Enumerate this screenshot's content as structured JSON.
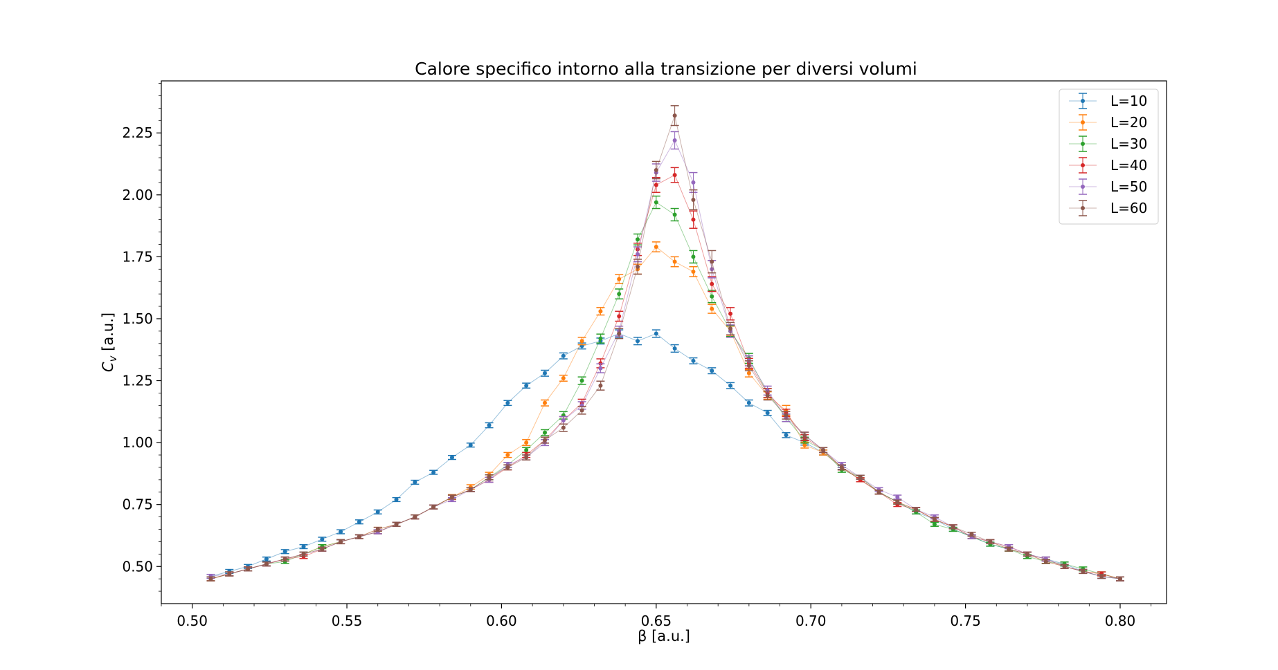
{
  "chart_data": {
    "type": "line",
    "title": "Calore specifico intorno alla transizione per diversi volumi",
    "xlabel": "β [a.u.]",
    "ylabel_main": "C",
    "ylabel_sub": "v",
    "ylabel_rest": " [a.u.]",
    "xlim": [
      0.49,
      0.815
    ],
    "ylim": [
      0.35,
      2.46
    ],
    "xticks": [
      0.5,
      0.55,
      0.6,
      0.65,
      0.7,
      0.75,
      0.8
    ],
    "xtick_labels": [
      "0.50",
      "0.55",
      "0.60",
      "0.65",
      "0.70",
      "0.75",
      "0.80"
    ],
    "yticks": [
      0.5,
      0.75,
      1.0,
      1.25,
      1.5,
      1.75,
      2.0,
      2.25
    ],
    "ytick_labels": [
      "0.50",
      "0.75",
      "1.00",
      "1.25",
      "1.50",
      "1.75",
      "2.00",
      "2.25"
    ],
    "legend_position": "top-right",
    "grid": false,
    "markers": "points with error bars",
    "series": [
      {
        "name": "L=10",
        "color": "#1f77b4",
        "x": [
          0.506,
          0.512,
          0.518,
          0.524,
          0.53,
          0.536,
          0.542,
          0.548,
          0.554,
          0.56,
          0.566,
          0.572,
          0.578,
          0.584,
          0.59,
          0.596,
          0.602,
          0.608,
          0.614,
          0.62,
          0.626,
          0.632,
          0.638,
          0.644,
          0.65,
          0.656,
          0.662,
          0.668,
          0.674,
          0.68,
          0.686,
          0.692,
          0.698,
          0.704,
          0.71,
          0.716,
          0.722,
          0.728,
          0.734,
          0.74,
          0.746,
          0.752,
          0.758,
          0.764,
          0.77,
          0.776,
          0.782,
          0.788,
          0.794,
          0.8
        ],
        "y": [
          0.46,
          0.48,
          0.5,
          0.53,
          0.56,
          0.58,
          0.61,
          0.64,
          0.68,
          0.72,
          0.77,
          0.84,
          0.88,
          0.94,
          0.99,
          1.07,
          1.16,
          1.23,
          1.28,
          1.35,
          1.39,
          1.41,
          1.44,
          1.41,
          1.44,
          1.38,
          1.33,
          1.29,
          1.23,
          1.16,
          1.12,
          1.03,
          1.0,
          0.96,
          0.9,
          0.85,
          0.8,
          0.76,
          0.72,
          0.69,
          0.65,
          0.62,
          0.59,
          0.57,
          0.55,
          0.53,
          0.51,
          0.48,
          0.46,
          0.45
        ],
        "err": [
          0.008,
          0.008,
          0.008,
          0.008,
          0.008,
          0.008,
          0.008,
          0.008,
          0.008,
          0.008,
          0.008,
          0.008,
          0.008,
          0.008,
          0.008,
          0.01,
          0.01,
          0.01,
          0.012,
          0.012,
          0.012,
          0.012,
          0.015,
          0.015,
          0.015,
          0.015,
          0.012,
          0.012,
          0.012,
          0.012,
          0.01,
          0.01,
          0.01,
          0.01,
          0.008,
          0.008,
          0.008,
          0.008,
          0.008,
          0.008,
          0.008,
          0.008,
          0.008,
          0.008,
          0.008,
          0.008,
          0.008,
          0.008,
          0.008,
          0.008
        ]
      },
      {
        "name": "L=20",
        "color": "#ff7f0e",
        "x": [
          0.506,
          0.512,
          0.518,
          0.524,
          0.53,
          0.536,
          0.542,
          0.548,
          0.554,
          0.56,
          0.566,
          0.572,
          0.578,
          0.584,
          0.59,
          0.596,
          0.602,
          0.608,
          0.614,
          0.62,
          0.626,
          0.632,
          0.638,
          0.644,
          0.65,
          0.656,
          0.662,
          0.668,
          0.674,
          0.68,
          0.686,
          0.692,
          0.698,
          0.704,
          0.71,
          0.716,
          0.722,
          0.728,
          0.734,
          0.74,
          0.746,
          0.752,
          0.758,
          0.764,
          0.77,
          0.776,
          0.782,
          0.788,
          0.794,
          0.8
        ],
        "y": [
          0.45,
          0.47,
          0.49,
          0.51,
          0.53,
          0.55,
          0.58,
          0.6,
          0.62,
          0.65,
          0.67,
          0.7,
          0.74,
          0.78,
          0.82,
          0.87,
          0.95,
          1.0,
          1.16,
          1.26,
          1.41,
          1.53,
          1.66,
          1.7,
          1.79,
          1.73,
          1.69,
          1.54,
          1.45,
          1.28,
          1.19,
          1.13,
          0.99,
          0.96,
          0.9,
          0.85,
          0.8,
          0.76,
          0.73,
          0.69,
          0.66,
          0.62,
          0.6,
          0.57,
          0.55,
          0.52,
          0.5,
          0.48,
          0.47,
          0.45
        ],
        "err": [
          0.008,
          0.008,
          0.008,
          0.008,
          0.008,
          0.008,
          0.008,
          0.008,
          0.008,
          0.008,
          0.008,
          0.008,
          0.008,
          0.01,
          0.01,
          0.01,
          0.01,
          0.012,
          0.012,
          0.012,
          0.015,
          0.015,
          0.018,
          0.02,
          0.02,
          0.02,
          0.02,
          0.018,
          0.02,
          0.015,
          0.015,
          0.02,
          0.012,
          0.01,
          0.01,
          0.008,
          0.008,
          0.008,
          0.008,
          0.008,
          0.008,
          0.008,
          0.008,
          0.008,
          0.008,
          0.008,
          0.008,
          0.008,
          0.008,
          0.008
        ]
      },
      {
        "name": "L=30",
        "color": "#2ca02c",
        "x": [
          0.506,
          0.512,
          0.518,
          0.524,
          0.53,
          0.536,
          0.542,
          0.548,
          0.554,
          0.56,
          0.566,
          0.572,
          0.578,
          0.584,
          0.59,
          0.596,
          0.602,
          0.608,
          0.614,
          0.62,
          0.626,
          0.632,
          0.638,
          0.644,
          0.65,
          0.656,
          0.662,
          0.668,
          0.674,
          0.68,
          0.686,
          0.692,
          0.698,
          0.704,
          0.71,
          0.716,
          0.722,
          0.728,
          0.734,
          0.74,
          0.746,
          0.752,
          0.758,
          0.764,
          0.77,
          0.776,
          0.782,
          0.788,
          0.794,
          0.8
        ],
        "y": [
          0.45,
          0.47,
          0.49,
          0.51,
          0.52,
          0.55,
          0.58,
          0.6,
          0.62,
          0.64,
          0.67,
          0.7,
          0.74,
          0.78,
          0.81,
          0.86,
          0.91,
          0.97,
          1.04,
          1.11,
          1.25,
          1.42,
          1.6,
          1.82,
          1.97,
          1.92,
          1.75,
          1.59,
          1.45,
          1.34,
          1.2,
          1.1,
          1.01,
          0.97,
          0.89,
          0.86,
          0.8,
          0.76,
          0.72,
          0.67,
          0.65,
          0.62,
          0.59,
          0.57,
          0.54,
          0.52,
          0.51,
          0.49,
          0.47,
          0.45
        ],
        "err": [
          0.008,
          0.008,
          0.008,
          0.008,
          0.008,
          0.008,
          0.008,
          0.008,
          0.008,
          0.008,
          0.008,
          0.008,
          0.008,
          0.008,
          0.008,
          0.01,
          0.01,
          0.01,
          0.012,
          0.015,
          0.015,
          0.018,
          0.02,
          0.022,
          0.025,
          0.025,
          0.025,
          0.025,
          0.022,
          0.02,
          0.018,
          0.015,
          0.012,
          0.01,
          0.01,
          0.008,
          0.008,
          0.008,
          0.008,
          0.008,
          0.008,
          0.008,
          0.008,
          0.008,
          0.008,
          0.008,
          0.008,
          0.008,
          0.008,
          0.008
        ]
      },
      {
        "name": "L=40",
        "color": "#d62728",
        "x": [
          0.506,
          0.512,
          0.518,
          0.524,
          0.53,
          0.536,
          0.542,
          0.548,
          0.554,
          0.56,
          0.566,
          0.572,
          0.578,
          0.584,
          0.59,
          0.596,
          0.602,
          0.608,
          0.614,
          0.62,
          0.626,
          0.632,
          0.638,
          0.644,
          0.65,
          0.656,
          0.662,
          0.668,
          0.674,
          0.68,
          0.686,
          0.692,
          0.698,
          0.704,
          0.71,
          0.716,
          0.722,
          0.728,
          0.734,
          0.74,
          0.746,
          0.752,
          0.758,
          0.764,
          0.77,
          0.776,
          0.782,
          0.788,
          0.794,
          0.8
        ],
        "y": [
          0.45,
          0.47,
          0.49,
          0.51,
          0.53,
          0.54,
          0.57,
          0.6,
          0.62,
          0.64,
          0.67,
          0.7,
          0.74,
          0.78,
          0.81,
          0.85,
          0.9,
          0.95,
          1.01,
          1.09,
          1.16,
          1.32,
          1.51,
          1.78,
          2.04,
          2.08,
          1.9,
          1.64,
          1.52,
          1.32,
          1.2,
          1.12,
          1.02,
          0.97,
          0.9,
          0.85,
          0.8,
          0.75,
          0.73,
          0.69,
          0.66,
          0.62,
          0.6,
          0.58,
          0.55,
          0.53,
          0.5,
          0.48,
          0.47,
          0.45
        ],
        "err": [
          0.008,
          0.008,
          0.008,
          0.008,
          0.008,
          0.008,
          0.008,
          0.008,
          0.008,
          0.008,
          0.008,
          0.008,
          0.008,
          0.008,
          0.008,
          0.01,
          0.01,
          0.01,
          0.012,
          0.015,
          0.015,
          0.018,
          0.02,
          0.025,
          0.03,
          0.03,
          0.035,
          0.03,
          0.025,
          0.02,
          0.018,
          0.015,
          0.012,
          0.01,
          0.01,
          0.008,
          0.008,
          0.008,
          0.008,
          0.008,
          0.008,
          0.008,
          0.008,
          0.008,
          0.008,
          0.008,
          0.008,
          0.008,
          0.008,
          0.008
        ]
      },
      {
        "name": "L=50",
        "color": "#9467bd",
        "x": [
          0.506,
          0.512,
          0.518,
          0.524,
          0.53,
          0.536,
          0.542,
          0.548,
          0.554,
          0.56,
          0.566,
          0.572,
          0.578,
          0.584,
          0.59,
          0.596,
          0.602,
          0.608,
          0.614,
          0.62,
          0.626,
          0.632,
          0.638,
          0.644,
          0.65,
          0.656,
          0.662,
          0.668,
          0.674,
          0.68,
          0.686,
          0.692,
          0.698,
          0.704,
          0.71,
          0.716,
          0.722,
          0.728,
          0.734,
          0.74,
          0.746,
          0.752,
          0.758,
          0.764,
          0.77,
          0.776,
          0.782,
          0.788,
          0.794,
          0.8
        ],
        "y": [
          0.46,
          0.47,
          0.49,
          0.51,
          0.53,
          0.55,
          0.57,
          0.6,
          0.62,
          0.64,
          0.67,
          0.7,
          0.74,
          0.77,
          0.81,
          0.85,
          0.91,
          0.94,
          1.0,
          1.09,
          1.15,
          1.3,
          1.45,
          1.76,
          2.09,
          2.22,
          2.05,
          1.7,
          1.45,
          1.33,
          1.21,
          1.1,
          1.03,
          0.97,
          0.91,
          0.86,
          0.81,
          0.78,
          0.73,
          0.7,
          0.66,
          0.62,
          0.6,
          0.58,
          0.55,
          0.53,
          0.5,
          0.48,
          0.46,
          0.45
        ],
        "err": [
          0.008,
          0.008,
          0.008,
          0.008,
          0.008,
          0.008,
          0.008,
          0.008,
          0.008,
          0.008,
          0.008,
          0.008,
          0.008,
          0.008,
          0.008,
          0.01,
          0.01,
          0.01,
          0.012,
          0.015,
          0.015,
          0.018,
          0.02,
          0.03,
          0.035,
          0.035,
          0.04,
          0.035,
          0.025,
          0.02,
          0.018,
          0.015,
          0.012,
          0.01,
          0.01,
          0.008,
          0.008,
          0.008,
          0.008,
          0.008,
          0.008,
          0.008,
          0.008,
          0.008,
          0.008,
          0.008,
          0.008,
          0.008,
          0.008,
          0.008
        ]
      },
      {
        "name": "L=60",
        "color": "#8c564b",
        "x": [
          0.506,
          0.512,
          0.518,
          0.524,
          0.53,
          0.536,
          0.542,
          0.548,
          0.554,
          0.56,
          0.566,
          0.572,
          0.578,
          0.584,
          0.59,
          0.596,
          0.602,
          0.608,
          0.614,
          0.62,
          0.626,
          0.632,
          0.638,
          0.644,
          0.65,
          0.656,
          0.662,
          0.668,
          0.674,
          0.68,
          0.686,
          0.692,
          0.698,
          0.704,
          0.71,
          0.716,
          0.722,
          0.728,
          0.734,
          0.74,
          0.746,
          0.752,
          0.758,
          0.764,
          0.77,
          0.776,
          0.782,
          0.788,
          0.794,
          0.8
        ],
        "y": [
          0.45,
          0.47,
          0.49,
          0.51,
          0.53,
          0.55,
          0.57,
          0.6,
          0.62,
          0.65,
          0.67,
          0.7,
          0.74,
          0.78,
          0.81,
          0.86,
          0.9,
          0.94,
          1.01,
          1.06,
          1.13,
          1.23,
          1.44,
          1.71,
          2.1,
          2.32,
          1.98,
          1.73,
          1.46,
          1.31,
          1.19,
          1.11,
          1.03,
          0.97,
          0.9,
          0.86,
          0.8,
          0.76,
          0.73,
          0.69,
          0.66,
          0.63,
          0.6,
          0.57,
          0.55,
          0.52,
          0.5,
          0.48,
          0.46,
          0.45
        ],
        "err": [
          0.008,
          0.008,
          0.008,
          0.008,
          0.008,
          0.008,
          0.008,
          0.008,
          0.008,
          0.008,
          0.008,
          0.008,
          0.008,
          0.008,
          0.008,
          0.01,
          0.01,
          0.01,
          0.012,
          0.015,
          0.015,
          0.018,
          0.02,
          0.03,
          0.035,
          0.04,
          0.04,
          0.045,
          0.025,
          0.02,
          0.018,
          0.015,
          0.012,
          0.01,
          0.01,
          0.008,
          0.008,
          0.008,
          0.008,
          0.008,
          0.008,
          0.008,
          0.008,
          0.008,
          0.008,
          0.008,
          0.008,
          0.008,
          0.008,
          0.008
        ]
      }
    ]
  }
}
